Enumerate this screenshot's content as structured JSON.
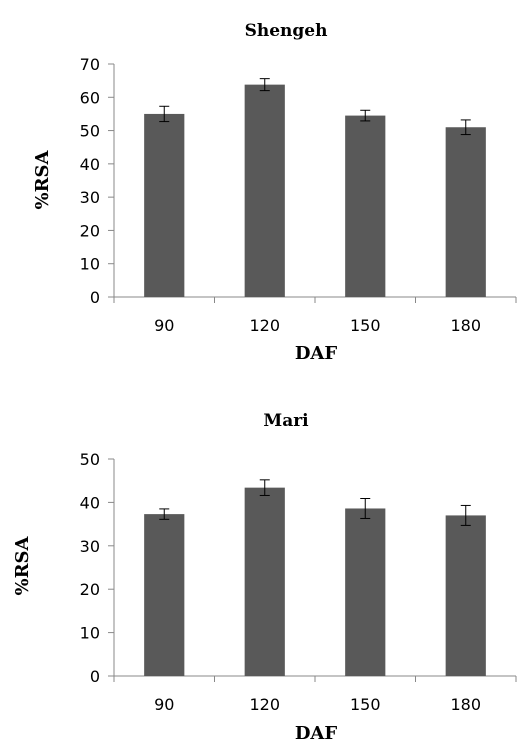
{
  "chart_data": [
    {
      "type": "bar",
      "title": "Shengeh",
      "xlabel": "DAF",
      "ylabel": "%RSA",
      "categories": [
        "90",
        "120",
        "150",
        "180"
      ],
      "values": [
        55.0,
        63.8,
        54.5,
        51.0
      ],
      "errors": [
        2.3,
        1.8,
        1.6,
        2.2
      ],
      "ylim": [
        0,
        70
      ],
      "yticks": [
        0,
        10,
        20,
        30,
        40,
        50,
        60,
        70
      ],
      "bar_color": "#595959",
      "grid": false,
      "legend": "none"
    },
    {
      "type": "bar",
      "title": "Mari",
      "xlabel": "DAF",
      "ylabel": "%RSA",
      "categories": [
        "90",
        "120",
        "150",
        "180"
      ],
      "values": [
        37.3,
        43.4,
        38.6,
        37.0
      ],
      "errors": [
        1.2,
        1.8,
        2.3,
        2.3
      ],
      "ylim": [
        0,
        50
      ],
      "yticks": [
        0,
        10,
        20,
        30,
        40,
        50
      ],
      "bar_color": "#595959",
      "grid": false,
      "legend": "none"
    }
  ]
}
